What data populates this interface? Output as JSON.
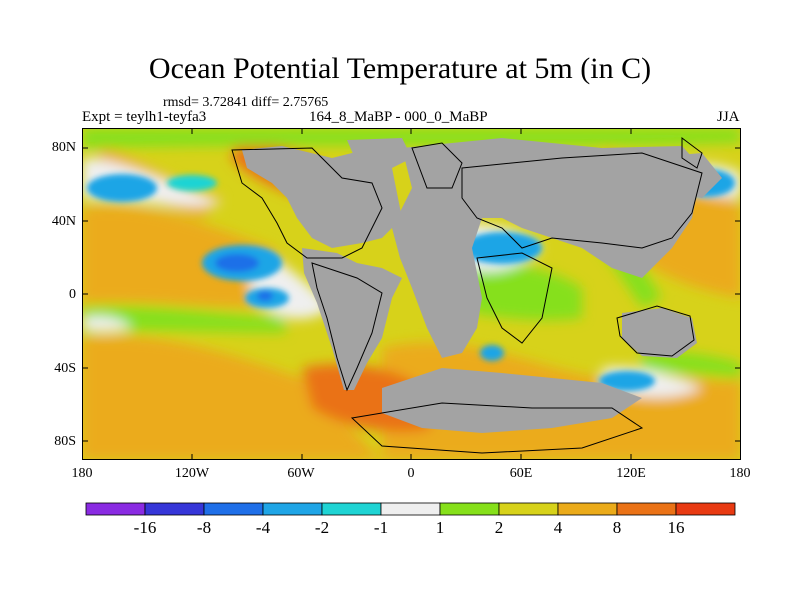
{
  "title": "Ocean Potential Temperature at 5m (in C)",
  "stats_line": "rmsd= 3.72841  diff= 2.75765",
  "expt_line": "Expt = teylh1-teyfa3",
  "subtitle": "164_8_MaBP - 000_0_MaBP",
  "season": "JJA",
  "map": {
    "y_axis_labels": [
      "80N",
      "40N",
      "0",
      "40S",
      "80S"
    ],
    "x_axis_labels": [
      "180",
      "120W",
      "60W",
      "0",
      "60E",
      "120E",
      "180"
    ],
    "land_color": "#a3a3a3"
  },
  "colorbar": {
    "labels": [
      "-16",
      "-8",
      "-4",
      "-2",
      "-1",
      "1",
      "2",
      "4",
      "8",
      "16"
    ],
    "colors": [
      "#8a2be2",
      "#3636d8",
      "#1f6fe8",
      "#1fa5e6",
      "#1fd4d4",
      "#efefef",
      "#86e01a",
      "#d7d21a",
      "#ebab1a",
      "#ea7216",
      "#e83a12"
    ]
  }
}
